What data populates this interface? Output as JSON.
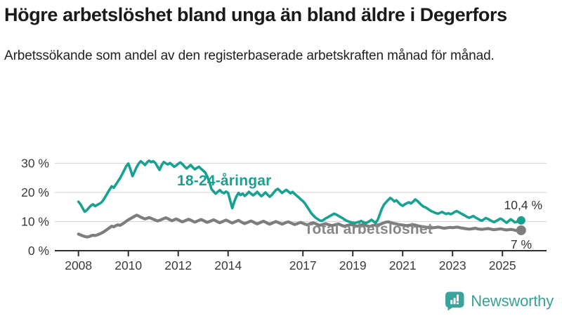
{
  "header": {
    "title": "Högre arbetslöshet bland unga än bland äldre i Degerfors",
    "subtitle": "Arbetssökande som andel av den registerbaserade arbetskraften månad för månad."
  },
  "colors": {
    "youth_series": "#16a191",
    "total_series": "#7d7d7d",
    "total_label": "#878787",
    "axis_line": "#2e2e2e",
    "tick_text": "#3b3b3b",
    "gridline": "#d9d9d9",
    "end_label_text": "#333333",
    "brand_teal": "#3aa09a",
    "title_text": "#1a1a1a"
  },
  "chart_data": {
    "type": "line",
    "title": "Högre arbetslöshet bland unga än bland äldre i Degerfors",
    "subtitle": "Arbetssökande som andel av den registerbaserade arbetskraften månad för månad.",
    "unit": "%",
    "x_start_month": "2008-01",
    "x_end_month": "2025-10",
    "x_tick_years": [
      2008,
      2010,
      2012,
      2014,
      2017,
      2019,
      2021,
      2023,
      2025
    ],
    "x_tick_labels": [
      "2008",
      "2010",
      "2012",
      "2014",
      "2017",
      "2019",
      "2021",
      "2023",
      "2025"
    ],
    "y_ticks": [
      0,
      10,
      20,
      30
    ],
    "y_tick_labels": [
      "0 %",
      "10 %",
      "20 %",
      "30 %"
    ],
    "ylim": [
      0,
      33
    ],
    "grid": true,
    "legend_position": "inline-labels",
    "series": [
      {
        "name": "18-24-åringar",
        "color": "#16a191",
        "end_value": 10.4,
        "end_label": "10,4 %",
        "values": [
          16.8,
          15.9,
          14.6,
          13.4,
          13.9,
          14.7,
          15.5,
          15.9,
          15.3,
          15.7,
          16.1,
          16.5,
          17.4,
          18.6,
          19.8,
          21.0,
          22.1,
          21.6,
          22.7,
          23.8,
          24.9,
          26.2,
          27.6,
          29.0,
          29.9,
          27.9,
          25.6,
          27.1,
          28.7,
          29.9,
          30.7,
          30.1,
          29.4,
          30.3,
          30.9,
          30.4,
          30.7,
          30.1,
          28.9,
          27.7,
          29.3,
          30.4,
          30.0,
          29.6,
          30.1,
          29.5,
          28.8,
          29.2,
          29.8,
          30.3,
          29.7,
          28.9,
          28.2,
          28.8,
          29.4,
          28.6,
          27.9,
          28.4,
          28.8,
          28.1,
          27.5,
          26.8,
          25.4,
          23.6,
          21.2,
          20.3,
          19.6,
          20.2,
          20.8,
          20.1,
          19.7,
          20.3,
          19.8,
          17.2,
          14.6,
          16.9,
          18.6,
          19.8,
          19.1,
          19.6,
          18.8,
          19.4,
          20.2,
          19.6,
          19.0,
          19.5,
          20.2,
          19.4,
          18.7,
          19.3,
          20.0,
          19.2,
          18.5,
          19.1,
          20.0,
          20.8,
          21.2,
          20.5,
          19.8,
          20.4,
          20.9,
          20.3,
          19.7,
          20.2,
          19.5,
          18.9,
          18.3,
          17.6,
          17.0,
          16.2,
          15.1,
          14.0,
          12.9,
          12.1,
          11.4,
          10.9,
          10.4,
          10.2,
          10.6,
          11.1,
          11.5,
          11.9,
          12.3,
          12.7,
          12.4,
          12.0,
          11.6,
          11.2,
          10.7,
          10.3,
          10.0,
          9.8,
          9.6,
          9.5,
          9.7,
          9.9,
          10.2,
          9.8,
          9.5,
          9.7,
          10.1,
          10.6,
          10.0,
          9.6,
          10.6,
          12.5,
          14.4,
          15.8,
          16.6,
          17.4,
          18.1,
          17.6,
          16.9,
          17.3,
          16.5,
          15.8,
          15.4,
          15.9,
          16.3,
          16.6,
          16.2,
          16.8,
          17.6,
          17.1,
          16.4,
          15.7,
          15.1,
          14.9,
          14.4,
          13.9,
          13.5,
          13.2,
          12.9,
          12.7,
          13.0,
          13.3,
          12.9,
          12.6,
          12.9,
          12.5,
          12.8,
          13.3,
          13.6,
          13.2,
          12.8,
          12.4,
          12.0,
          11.6,
          11.3,
          11.6,
          11.9,
          11.4,
          11.0,
          10.6,
          10.3,
          10.7,
          11.2,
          10.9,
          10.5,
          10.1,
          9.8,
          10.2,
          10.6,
          11.0,
          10.7,
          10.1,
          9.6,
          10.2,
          10.8,
          10.3,
          9.7,
          9.9,
          10.8,
          10.4
        ]
      },
      {
        "name": "Total arbetslöshet",
        "color": "#7d7d7d",
        "end_value": 7,
        "end_label": "7 %",
        "values": [
          5.7,
          5.4,
          5.1,
          4.9,
          4.7,
          4.8,
          5.1,
          5.3,
          5.2,
          5.4,
          5.7,
          6.0,
          6.4,
          6.9,
          7.4,
          7.9,
          8.4,
          8.2,
          8.6,
          8.9,
          8.7,
          9.1,
          9.6,
          10.1,
          10.6,
          11.0,
          11.4,
          11.8,
          12.2,
          11.9,
          11.5,
          11.2,
          10.9,
          11.1,
          11.4,
          11.1,
          10.8,
          10.5,
          10.2,
          10.4,
          10.7,
          11.0,
          11.3,
          11.0,
          10.6,
          10.3,
          10.6,
          10.9,
          10.6,
          10.2,
          9.9,
          10.2,
          10.5,
          10.8,
          10.5,
          10.1,
          9.8,
          10.1,
          10.4,
          10.7,
          10.4,
          10.0,
          9.7,
          10.0,
          10.3,
          10.6,
          10.3,
          9.9,
          9.6,
          9.9,
          10.2,
          10.5,
          10.2,
          9.8,
          9.5,
          9.8,
          10.1,
          10.4,
          10.0,
          9.6,
          9.3,
          9.6,
          9.9,
          10.2,
          9.9,
          9.5,
          9.2,
          9.5,
          9.8,
          10.1,
          9.8,
          9.4,
          9.1,
          9.4,
          9.7,
          10.0,
          9.7,
          9.4,
          9.1,
          9.4,
          9.7,
          9.9,
          9.6,
          9.3,
          9.0,
          9.2,
          9.5,
          9.7,
          9.4,
          9.1,
          8.9,
          9.1,
          9.4,
          9.6,
          9.3,
          9.0,
          8.7,
          8.9,
          9.1,
          9.3,
          9.0,
          8.8,
          8.6,
          8.8,
          9.0,
          9.2,
          8.9,
          8.6,
          8.4,
          8.6,
          8.8,
          9.0,
          8.8,
          8.6,
          8.4,
          8.6,
          8.8,
          9.0,
          8.8,
          8.5,
          8.3,
          8.5,
          8.7,
          8.9,
          8.8,
          9.0,
          9.3,
          9.6,
          9.8,
          9.9,
          9.7,
          9.5,
          9.3,
          9.2,
          9.0,
          8.9,
          8.8,
          8.7,
          8.6,
          8.7,
          8.8,
          8.9,
          8.8,
          8.6,
          8.4,
          8.3,
          8.2,
          8.1,
          8.0,
          7.9,
          7.8,
          7.9,
          8.0,
          8.1,
          8.0,
          7.8,
          7.7,
          7.8,
          7.9,
          8.0,
          7.9,
          8.0,
          8.1,
          8.0,
          7.8,
          7.7,
          7.6,
          7.5,
          7.4,
          7.5,
          7.6,
          7.7,
          7.5,
          7.4,
          7.3,
          7.4,
          7.5,
          7.6,
          7.5,
          7.3,
          7.2,
          7.3,
          7.4,
          7.5,
          7.4,
          7.2,
          7.1,
          7.2,
          7.3,
          7.2,
          7.0,
          6.9,
          6.8,
          7.0
        ]
      }
    ]
  },
  "footer": {
    "brand": "Newsworthy",
    "logo_icon": "bar-chart-speech-bubble"
  }
}
